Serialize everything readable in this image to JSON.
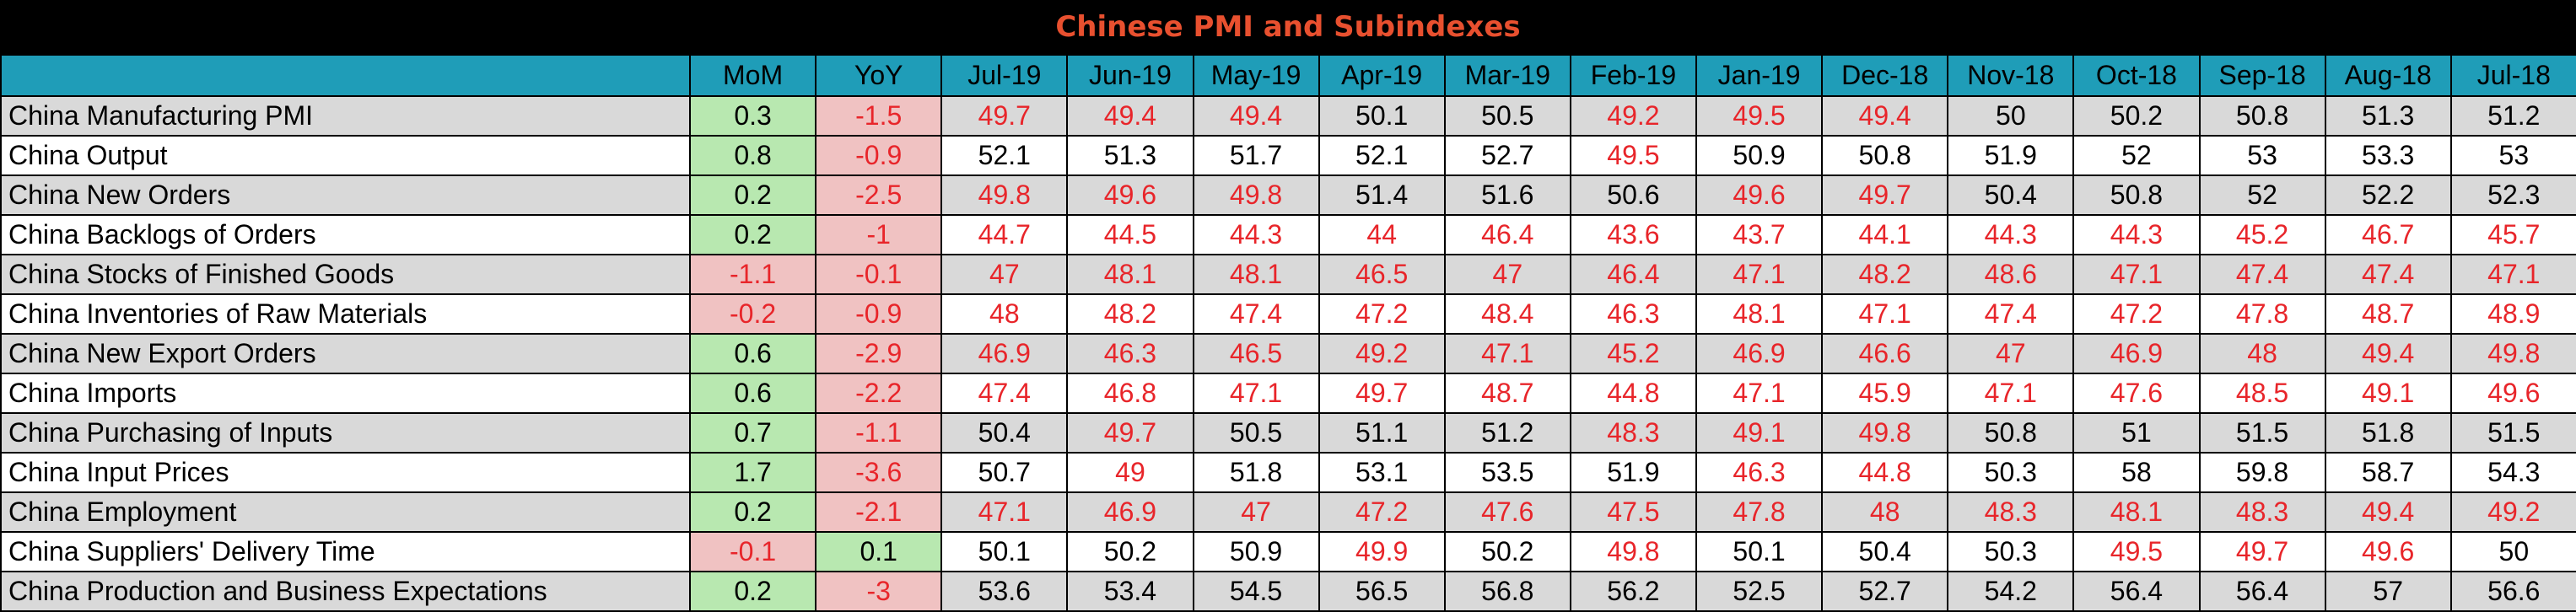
{
  "title": "Chinese PMI and Subindexes",
  "chart_data": {
    "type": "table",
    "title": "Chinese PMI and Subindexes",
    "columns": [
      "",
      "MoM",
      "YoY",
      "Jul-19",
      "Jun-19",
      "May-19",
      "Apr-19",
      "Mar-19",
      "Feb-19",
      "Jan-19",
      "Dec-18",
      "Nov-18",
      "Oct-18",
      "Sep-18",
      "Aug-18",
      "Jul-18"
    ],
    "rows": [
      {
        "label": "China Manufacturing PMI",
        "mom": 0.3,
        "yoy": -1.5,
        "values": [
          49.7,
          49.4,
          49.4,
          50.1,
          50.5,
          49.2,
          49.5,
          49.4,
          50,
          50.2,
          50.8,
          51.3,
          51.2
        ]
      },
      {
        "label": "China Output",
        "mom": 0.8,
        "yoy": -0.9,
        "values": [
          52.1,
          51.3,
          51.7,
          52.1,
          52.7,
          49.5,
          50.9,
          50.8,
          51.9,
          52,
          53,
          53.3,
          53
        ]
      },
      {
        "label": "China New Orders",
        "mom": 0.2,
        "yoy": -2.5,
        "values": [
          49.8,
          49.6,
          49.8,
          51.4,
          51.6,
          50.6,
          49.6,
          49.7,
          50.4,
          50.8,
          52,
          52.2,
          52.3
        ]
      },
      {
        "label": "China Backlogs of Orders",
        "mom": 0.2,
        "yoy": -1,
        "values": [
          44.7,
          44.5,
          44.3,
          44,
          46.4,
          43.6,
          43.7,
          44.1,
          44.3,
          44.3,
          45.2,
          46.7,
          45.7
        ]
      },
      {
        "label": "China Stocks of Finished Goods",
        "mom": -1.1,
        "yoy": -0.1,
        "values": [
          47,
          48.1,
          48.1,
          46.5,
          47,
          46.4,
          47.1,
          48.2,
          48.6,
          47.1,
          47.4,
          47.4,
          47.1
        ]
      },
      {
        "label": "China Inventories of Raw Materials",
        "mom": -0.2,
        "yoy": -0.9,
        "values": [
          48,
          48.2,
          47.4,
          47.2,
          48.4,
          46.3,
          48.1,
          47.1,
          47.4,
          47.2,
          47.8,
          48.7,
          48.9
        ]
      },
      {
        "label": "China New Export Orders",
        "mom": 0.6,
        "yoy": -2.9,
        "values": [
          46.9,
          46.3,
          46.5,
          49.2,
          47.1,
          45.2,
          46.9,
          46.6,
          47,
          46.9,
          48,
          49.4,
          49.8
        ]
      },
      {
        "label": "China Imports",
        "mom": 0.6,
        "yoy": -2.2,
        "values": [
          47.4,
          46.8,
          47.1,
          49.7,
          48.7,
          44.8,
          47.1,
          45.9,
          47.1,
          47.6,
          48.5,
          49.1,
          49.6
        ]
      },
      {
        "label": "China Purchasing of Inputs",
        "mom": 0.7,
        "yoy": -1.1,
        "values": [
          50.4,
          49.7,
          50.5,
          51.1,
          51.2,
          48.3,
          49.1,
          49.8,
          50.8,
          51,
          51.5,
          51.8,
          51.5
        ]
      },
      {
        "label": "China Input Prices",
        "mom": 1.7,
        "yoy": -3.6,
        "values": [
          50.7,
          49,
          51.8,
          53.1,
          53.5,
          51.9,
          46.3,
          44.8,
          50.3,
          58,
          59.8,
          58.7,
          54.3
        ]
      },
      {
        "label": "China Employment",
        "mom": 0.2,
        "yoy": -2.1,
        "values": [
          47.1,
          46.9,
          47,
          47.2,
          47.6,
          47.5,
          47.8,
          48,
          48.3,
          48.1,
          48.3,
          49.4,
          49.2
        ]
      },
      {
        "label": "China Suppliers' Delivery Time",
        "mom": -0.1,
        "yoy": 0.1,
        "values": [
          50.1,
          50.2,
          50.9,
          49.9,
          50.2,
          49.8,
          50.1,
          50.4,
          50.3,
          49.5,
          49.7,
          49.6,
          50
        ]
      },
      {
        "label": "China Production and Business Expectations",
        "mom": 0.2,
        "yoy": -3,
        "values": [
          53.6,
          53.4,
          54.5,
          56.5,
          56.8,
          56.2,
          52.5,
          52.7,
          54.2,
          56.4,
          56.4,
          57,
          56.6
        ]
      }
    ]
  },
  "colors": {
    "title_text": "#e8502f",
    "title_bg": "#000000",
    "header_bg": "#1f9db8",
    "below_50": "#e8252a",
    "positive_change_bg": "#b8e8b0",
    "negative_change_bg": "#f0c2c2",
    "shaded_row_bg": "#d9d9d9"
  }
}
